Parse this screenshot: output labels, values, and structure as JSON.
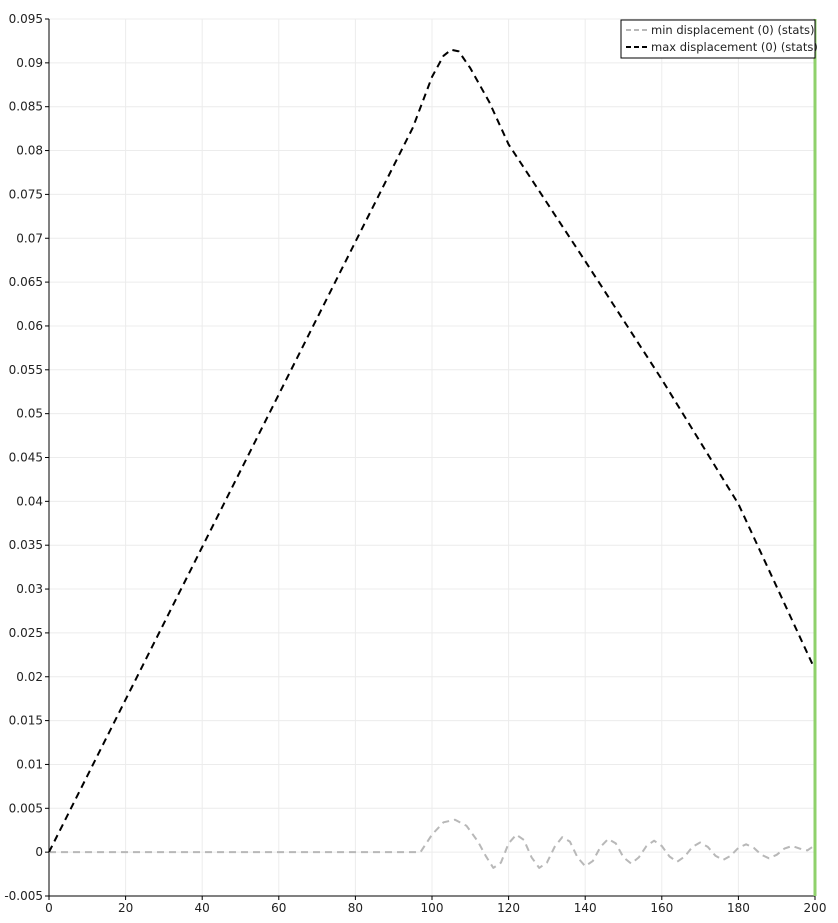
{
  "chart_data": {
    "type": "line",
    "title": "",
    "xlabel": "",
    "ylabel": "",
    "xlim": [
      0,
      200
    ],
    "ylim": [
      -0.005,
      0.095
    ],
    "x_ticks": [
      0,
      20,
      40,
      60,
      80,
      100,
      120,
      140,
      160,
      180,
      200
    ],
    "x_tick_labels": [
      "0",
      "20",
      "40",
      "60",
      "80",
      "100",
      "120",
      "140",
      "160",
      "180",
      "200"
    ],
    "y_ticks": [
      -0.005,
      0,
      0.005,
      0.01,
      0.015,
      0.02,
      0.025,
      0.03,
      0.035,
      0.04,
      0.045,
      0.05,
      0.055,
      0.06,
      0.065,
      0.07,
      0.075,
      0.08,
      0.085,
      0.09,
      0.095
    ],
    "y_tick_labels": [
      "-0.005",
      "0",
      "0.005",
      "0.01",
      "0.015",
      "0.02",
      "0.025",
      "0.03",
      "0.035",
      "0.04",
      "0.045",
      "0.05",
      "0.055",
      "0.06",
      "0.065",
      "0.07",
      "0.075",
      "0.08",
      "0.085",
      "0.09",
      "0.095"
    ],
    "grid": true,
    "legend_position": "top-right",
    "current_time_marker": {
      "x": 200,
      "color": "#8fd16b"
    },
    "series": [
      {
        "name": "min displacement (0) (stats)",
        "color": "#b8b8b8",
        "style": "dashed",
        "x": [
          0,
          20,
          40,
          60,
          80,
          97,
          100,
          103,
          106,
          109,
          112,
          114,
          116,
          118,
          120,
          122,
          124,
          126,
          128,
          130,
          132,
          134,
          136,
          138,
          140,
          142,
          144,
          146,
          148,
          150,
          152,
          154,
          156,
          158,
          160,
          162,
          164,
          166,
          168,
          170,
          172,
          174,
          176,
          178,
          180,
          182,
          184,
          186,
          188,
          190,
          192,
          194,
          196,
          198,
          200
        ],
        "y": [
          0,
          0,
          0,
          0,
          0,
          0,
          0.002,
          0.0034,
          0.0037,
          0.003,
          0.0012,
          -0.0004,
          -0.0018,
          -0.0012,
          0.001,
          0.002,
          0.0014,
          -0.0006,
          -0.0018,
          -0.0012,
          0.0006,
          0.0017,
          0.0012,
          -0.0006,
          -0.0016,
          -0.001,
          0.0006,
          0.0015,
          0.001,
          -0.0006,
          -0.0013,
          -0.0006,
          0.0007,
          0.0013,
          0.0007,
          -0.0005,
          -0.0011,
          -0.0005,
          0.0006,
          0.0011,
          0.0006,
          -0.0004,
          -0.0009,
          -0.0004,
          0.0005,
          0.0009,
          0.0005,
          -0.0003,
          -0.0007,
          -0.0003,
          0.0004,
          0.0007,
          0.0004,
          0.0002,
          0.0008
        ]
      },
      {
        "name": "max displacement (0) (stats)",
        "color": "#000000",
        "style": "dashed",
        "x": [
          0,
          20,
          40,
          60,
          80,
          95,
          100,
          103,
          105,
          107,
          110,
          115,
          120,
          140,
          160,
          180,
          200
        ],
        "y": [
          0,
          0.0174,
          0.0348,
          0.0522,
          0.0696,
          0.0826,
          0.0884,
          0.0908,
          0.0915,
          0.0913,
          0.0894,
          0.0855,
          0.0807,
          0.0674,
          0.0539,
          0.0397,
          0.0208
        ]
      }
    ]
  }
}
